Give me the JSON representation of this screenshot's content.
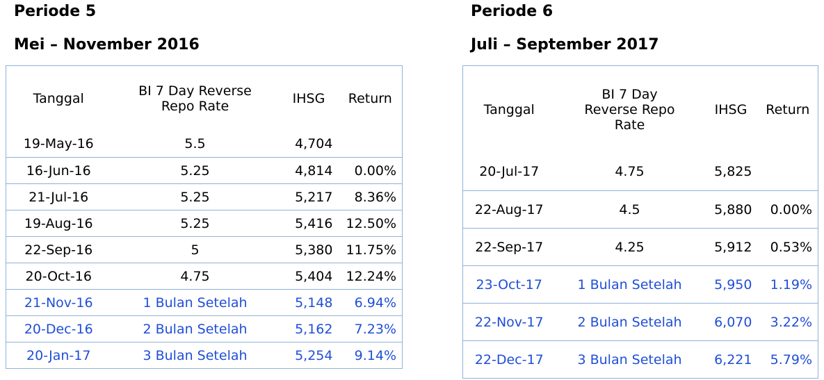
{
  "periode5": {
    "title": "Periode 5",
    "subtitle": "Mei – November 2016",
    "headers": [
      "Tanggal",
      "BI 7 Day Reverse Repo Rate",
      "IHSG",
      "Return"
    ],
    "rows": [
      {
        "tanggal": "19-May-16",
        "rate": "5.5",
        "ihsg": "4,704",
        "return": "",
        "after": false
      },
      {
        "tanggal": "16-Jun-16",
        "rate": "5.25",
        "ihsg": "4,814",
        "return": "0.00%",
        "after": false
      },
      {
        "tanggal": "21-Jul-16",
        "rate": "5.25",
        "ihsg": "5,217",
        "return": "8.36%",
        "after": false
      },
      {
        "tanggal": "19-Aug-16",
        "rate": "5.25",
        "ihsg": "5,416",
        "return": "12.50%",
        "after": false
      },
      {
        "tanggal": "22-Sep-16",
        "rate": "5",
        "ihsg": "5,380",
        "return": "11.75%",
        "after": false
      },
      {
        "tanggal": "20-Oct-16",
        "rate": "4.75",
        "ihsg": "5,404",
        "return": "12.24%",
        "after": false
      },
      {
        "tanggal": "21-Nov-16",
        "rate": "1 Bulan Setelah",
        "ihsg": "5,148",
        "return": "6.94%",
        "after": true
      },
      {
        "tanggal": "20-Dec-16",
        "rate": "2 Bulan Setelah",
        "ihsg": "5,162",
        "return": "7.23%",
        "after": true
      },
      {
        "tanggal": "20-Jan-17",
        "rate": "3 Bulan Setelah",
        "ihsg": "5,254",
        "return": "9.14%",
        "after": true
      }
    ]
  },
  "periode6": {
    "title": "Periode 6",
    "subtitle": "Juli – September 2017",
    "headers": [
      "Tanggal",
      "BI 7 Day Reverse Repo Rate",
      "IHSG",
      "Return"
    ],
    "rows": [
      {
        "tanggal": "20-Jul-17",
        "rate": "4.75",
        "ihsg": "5,825",
        "return": "",
        "after": false
      },
      {
        "tanggal": "22-Aug-17",
        "rate": "4.5",
        "ihsg": "5,880",
        "return": "0.00%",
        "after": false
      },
      {
        "tanggal": "22-Sep-17",
        "rate": "4.25",
        "ihsg": "5,912",
        "return": "0.53%",
        "after": false
      },
      {
        "tanggal": "23-Oct-17",
        "rate": "1 Bulan Setelah",
        "ihsg": "5,950",
        "return": "1.19%",
        "after": true
      },
      {
        "tanggal": "22-Nov-17",
        "rate": "2 Bulan Setelah",
        "ihsg": "6,070",
        "return": "3.22%",
        "after": true
      },
      {
        "tanggal": "22-Dec-17",
        "rate": "3 Bulan Setelah",
        "ihsg": "6,221",
        "return": "5.79%",
        "after": true
      }
    ]
  },
  "colors": {
    "border": "#8fb2d8",
    "after_text": "#1f4ed8"
  }
}
